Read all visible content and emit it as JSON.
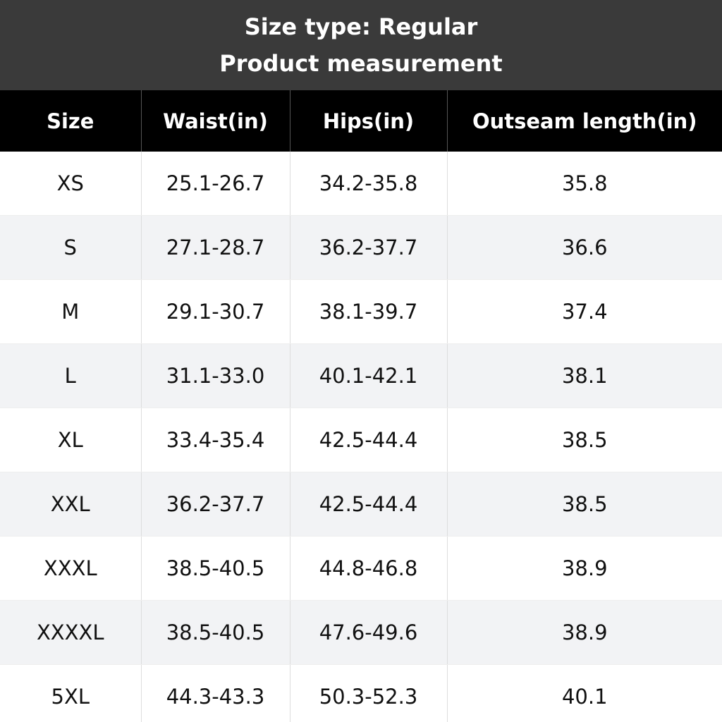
{
  "header": {
    "title": "Size type: Regular",
    "subtitle": "Product measurement"
  },
  "table": {
    "columns": [
      "Size",
      "Waist(in)",
      "Hips(in)",
      "Outseam length(in)"
    ],
    "rows": [
      [
        "XS",
        "25.1-26.7",
        "34.2-35.8",
        "35.8"
      ],
      [
        "S",
        "27.1-28.7",
        "36.2-37.7",
        "36.6"
      ],
      [
        "M",
        "29.1-30.7",
        "38.1-39.7",
        "37.4"
      ],
      [
        "L",
        "31.1-33.0",
        "40.1-42.1",
        "38.1"
      ],
      [
        "XL",
        "33.4-35.4",
        "42.5-44.4",
        "38.5"
      ],
      [
        "XXL",
        "36.2-37.7",
        "42.5-44.4",
        "38.5"
      ],
      [
        "XXXL",
        "38.5-40.5",
        "44.8-46.8",
        "38.9"
      ],
      [
        "XXXXL",
        "38.5-40.5",
        "47.6-49.6",
        "38.9"
      ],
      [
        "5XL",
        "44.3-43.3",
        "50.3-52.3",
        "40.1"
      ]
    ]
  }
}
